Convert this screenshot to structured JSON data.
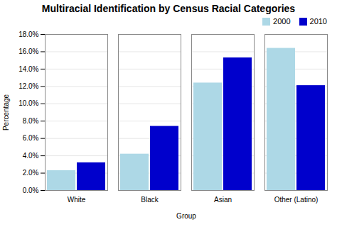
{
  "chart_data": {
    "type": "bar",
    "title": "Multiracial Identification by Census Racial Categories",
    "xlabel": "Group",
    "ylabel": "Percentage",
    "categories": [
      "White",
      "Black",
      "Asian",
      "Other (Latino)"
    ],
    "series": [
      {
        "name": "2000",
        "color": "#add8e6",
        "values": [
          2.3,
          4.2,
          12.4,
          16.4
        ]
      },
      {
        "name": "2010",
        "color": "#0000cc",
        "values": [
          3.2,
          7.4,
          15.3,
          12.1
        ]
      }
    ],
    "ylim": [
      0,
      18
    ],
    "yticks": [
      {
        "value": 0,
        "label": "0.0%"
      },
      {
        "value": 2,
        "label": "2.0%"
      },
      {
        "value": 4,
        "label": "4.0%"
      },
      {
        "value": 6,
        "label": "6.0%"
      },
      {
        "value": 8,
        "label": "8.0%"
      },
      {
        "value": 10,
        "label": "10.0%"
      },
      {
        "value": 12,
        "label": "12.0%"
      },
      {
        "value": 14,
        "label": "14.0%"
      },
      {
        "value": 16,
        "label": "16.0%"
      },
      {
        "value": 18,
        "label": "18.0%"
      }
    ],
    "grid": true,
    "legend": "upper right"
  }
}
